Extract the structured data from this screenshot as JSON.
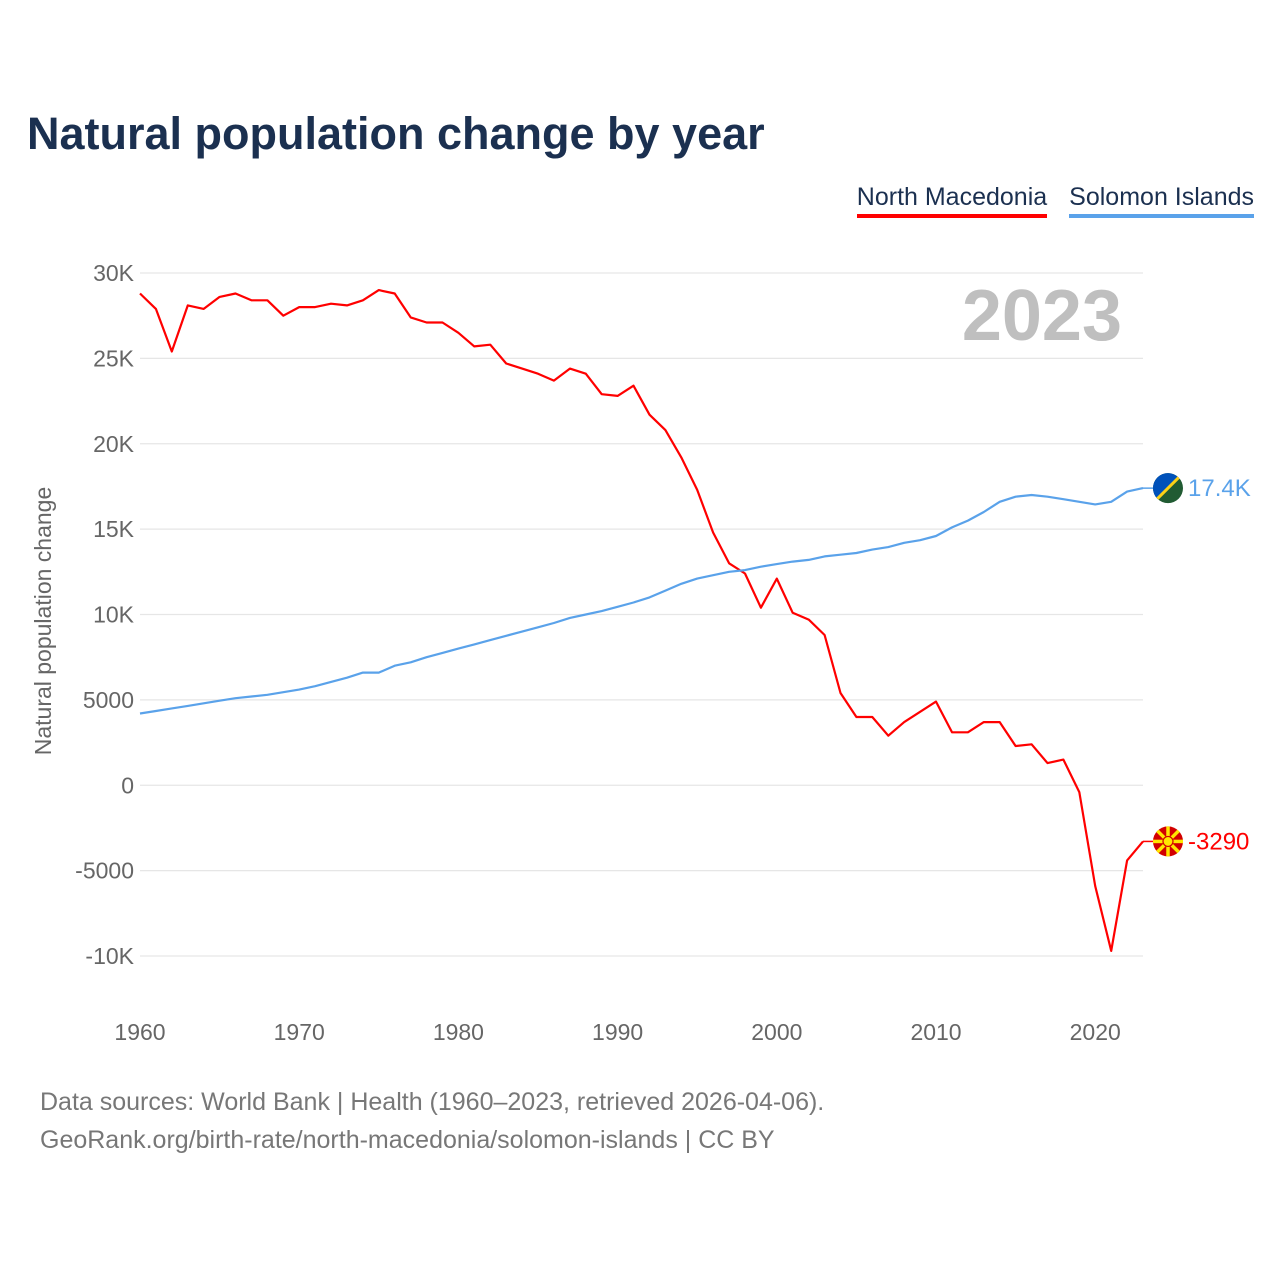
{
  "chart_data": {
    "type": "line",
    "title": "Natural population change by year",
    "xlabel": "",
    "ylabel": "Natural population change",
    "xlim": [
      1960,
      2023
    ],
    "ylim": [
      -10000,
      30000
    ],
    "grid": true,
    "legend_position": "top-right",
    "year_watermark": "2023",
    "x_ticks": [
      1960,
      1970,
      1980,
      1990,
      2000,
      2010,
      2020
    ],
    "x_tick_labels": [
      "1960",
      "1970",
      "1980",
      "1990",
      "2000",
      "2010",
      "2020"
    ],
    "y_ticks": [
      30000,
      25000,
      20000,
      15000,
      10000,
      5000,
      0,
      -5000,
      -10000
    ],
    "y_tick_labels": [
      "30K",
      "25K",
      "20K",
      "15K",
      "10K",
      "5000",
      "0",
      "-5000",
      "-10K"
    ],
    "x": [
      1960,
      1961,
      1962,
      1963,
      1964,
      1965,
      1966,
      1967,
      1968,
      1969,
      1970,
      1971,
      1972,
      1973,
      1974,
      1975,
      1976,
      1977,
      1978,
      1979,
      1980,
      1981,
      1982,
      1983,
      1984,
      1985,
      1986,
      1987,
      1988,
      1989,
      1990,
      1991,
      1992,
      1993,
      1994,
      1995,
      1996,
      1997,
      1998,
      1999,
      2000,
      2001,
      2002,
      2003,
      2004,
      2005,
      2006,
      2007,
      2008,
      2009,
      2010,
      2011,
      2012,
      2013,
      2014,
      2015,
      2016,
      2017,
      2018,
      2019,
      2020,
      2021,
      2022,
      2023
    ],
    "series": [
      {
        "name": "North Macedonia",
        "color": "#ff0000",
        "end_label": "-3290",
        "values": [
          28800,
          27900,
          25400,
          28100,
          27900,
          28600,
          28800,
          28400,
          28400,
          27500,
          28000,
          28000,
          28200,
          28100,
          28400,
          29000,
          28800,
          27400,
          27100,
          27100,
          26500,
          25700,
          25800,
          24700,
          24400,
          24100,
          23700,
          24400,
          24100,
          22900,
          22800,
          23400,
          21700,
          20800,
          19200,
          17300,
          14800,
          13000,
          12400,
          10400,
          12100,
          10100,
          9700,
          8800,
          5400,
          4000,
          4000,
          2900,
          3700,
          4300,
          4900,
          3100,
          3100,
          3700,
          3700,
          2300,
          2400,
          1300,
          1500,
          -400,
          -5900,
          -9700,
          -4400,
          -3290
        ]
      },
      {
        "name": "Solomon Islands",
        "color": "#5aa2ea",
        "end_label": "17.4K",
        "values": [
          4200,
          4350,
          4500,
          4650,
          4800,
          4950,
          5100,
          5200,
          5300,
          5450,
          5600,
          5800,
          6050,
          6300,
          6600,
          6600,
          7000,
          7200,
          7500,
          7750,
          8000,
          8250,
          8500,
          8750,
          9000,
          9250,
          9500,
          9800,
          10000,
          10200,
          10450,
          10700,
          11000,
          11400,
          11800,
          12100,
          12300,
          12500,
          12600,
          12800,
          12950,
          13100,
          13200,
          13400,
          13500,
          13600,
          13800,
          13950,
          14200,
          14350,
          14600,
          15100,
          15500,
          16000,
          16600,
          16900,
          17000,
          16900,
          16750,
          16600,
          16450,
          16600,
          17200,
          17400
        ]
      }
    ]
  },
  "footer": {
    "line1": "Data sources: World Bank | Health (1960–2023, retrieved 2026-04-06).",
    "line2": "GeoRank.org/birth-rate/north-macedonia/solomon-islands | CC BY"
  }
}
